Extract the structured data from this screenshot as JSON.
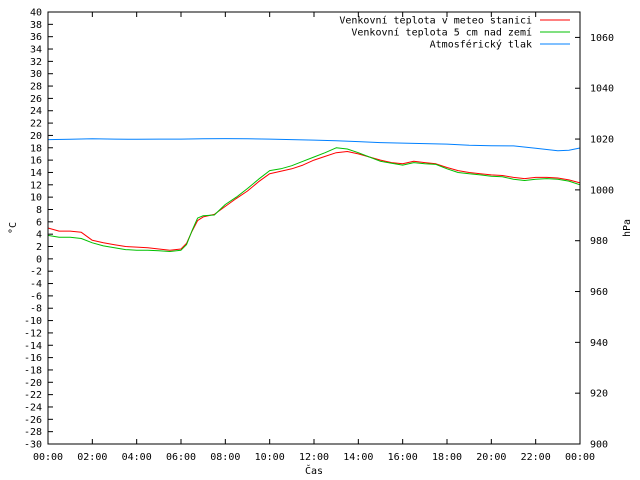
{
  "chart_data": {
    "type": "line",
    "xlabel": "Čas",
    "ylabel_left": "°C",
    "ylabel_right": "hPa",
    "x_ticks": [
      "00:00",
      "02:00",
      "04:00",
      "06:00",
      "08:00",
      "10:00",
      "12:00",
      "14:00",
      "16:00",
      "18:00",
      "20:00",
      "22:00",
      "00:00"
    ],
    "x_range_hours": [
      0,
      24
    ],
    "ylim_left": [
      -30,
      40
    ],
    "yticks_left": [
      40,
      38,
      36,
      34,
      32,
      30,
      28,
      26,
      24,
      22,
      20,
      18,
      16,
      14,
      12,
      10,
      8,
      6,
      4,
      2,
      0,
      -2,
      -4,
      -6,
      -8,
      -10,
      -12,
      -14,
      -16,
      -18,
      -20,
      -22,
      -24,
      -26,
      -28,
      -30
    ],
    "ylim_right": [
      900,
      1070
    ],
    "yticks_right": [
      1060,
      1040,
      1020,
      1000,
      980,
      960,
      940,
      920,
      900
    ],
    "grid": false,
    "legend_position": "top-right",
    "series": [
      {
        "name": "Venkovní teplota v meteo stanici",
        "color": "#ff0000",
        "axis": "left",
        "x": [
          0,
          0.5,
          1,
          1.5,
          2,
          2.5,
          3,
          3.5,
          4,
          4.5,
          5,
          5.5,
          6,
          6.25,
          6.5,
          6.75,
          7,
          7.5,
          8,
          8.5,
          9,
          9.5,
          10,
          10.5,
          11,
          11.5,
          12,
          12.5,
          13,
          13.5,
          14,
          14.5,
          15,
          15.5,
          16,
          16.5,
          17,
          17.5,
          18,
          18.5,
          19,
          19.5,
          20,
          20.5,
          21,
          21.5,
          22,
          22.5,
          23,
          23.5,
          24
        ],
        "values": [
          5,
          4.5,
          4.5,
          4.3,
          3,
          2.6,
          2.3,
          2,
          1.9,
          1.8,
          1.6,
          1.4,
          1.6,
          2.5,
          4.5,
          6.2,
          6.8,
          7.2,
          8.5,
          9.8,
          11,
          12.5,
          13.8,
          14.2,
          14.6,
          15.2,
          16,
          16.6,
          17.2,
          17.4,
          17,
          16.5,
          16,
          15.6,
          15.4,
          15.8,
          15.6,
          15.4,
          14.8,
          14.3,
          14,
          13.8,
          13.6,
          13.5,
          13.2,
          13,
          13.2,
          13.2,
          13.1,
          12.8,
          12.3
        ]
      },
      {
        "name": "Venkovní teplota 5 cm nad zemí",
        "color": "#00c000",
        "axis": "left",
        "x": [
          0,
          0.5,
          1,
          1.5,
          2,
          2.5,
          3,
          3.5,
          4,
          4.5,
          5,
          5.5,
          6,
          6.25,
          6.5,
          6.75,
          7,
          7.5,
          8,
          8.5,
          9,
          9.5,
          10,
          10.5,
          11,
          11.5,
          12,
          12.5,
          13,
          13.5,
          14,
          14.5,
          15,
          15.5,
          16,
          16.5,
          17,
          17.5,
          18,
          18.5,
          19,
          19.5,
          20,
          20.5,
          21,
          21.5,
          22,
          22.5,
          23,
          23.5,
          24
        ],
        "values": [
          3.8,
          3.5,
          3.5,
          3.3,
          2.6,
          2.1,
          1.8,
          1.5,
          1.4,
          1.4,
          1.3,
          1.2,
          1.4,
          2.3,
          4.6,
          6.6,
          7,
          7.1,
          8.8,
          10,
          11.4,
          12.9,
          14.3,
          14.6,
          15.1,
          15.8,
          16.5,
          17.2,
          18,
          17.8,
          17.2,
          16.5,
          15.8,
          15.5,
          15.2,
          15.6,
          15.4,
          15.3,
          14.6,
          14,
          13.8,
          13.6,
          13.4,
          13.3,
          12.9,
          12.7,
          12.9,
          13,
          12.9,
          12.6,
          12
        ]
      },
      {
        "name": "Atmosférický tlak",
        "color": "#0080ff",
        "axis": "right",
        "x": [
          0,
          1,
          2,
          3,
          4,
          5,
          6,
          7,
          8,
          9,
          10,
          11,
          12,
          13,
          14,
          15,
          16,
          17,
          18,
          19,
          20,
          21,
          22,
          23,
          23.5,
          24
        ],
        "values": [
          1019.8,
          1019.9,
          1020.1,
          1020,
          1019.9,
          1020,
          1020,
          1020.1,
          1020.2,
          1020.1,
          1020,
          1019.8,
          1019.6,
          1019.3,
          1019,
          1018.6,
          1018.4,
          1018.2,
          1018,
          1017.6,
          1017.4,
          1017.3,
          1016.4,
          1015.4,
          1015.6,
          1016.5
        ]
      }
    ]
  }
}
